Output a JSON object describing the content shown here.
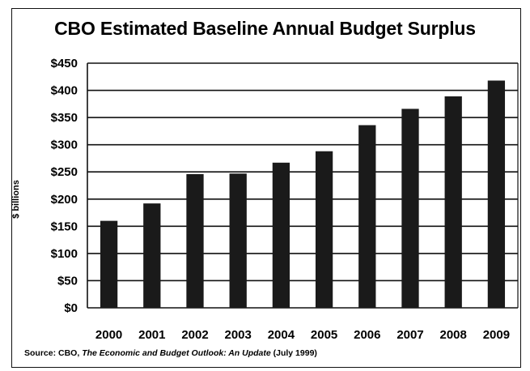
{
  "chart_data": {
    "type": "bar",
    "title": "CBO Estimated Baseline Annual Budget Surplus",
    "ylabel": "$ billions",
    "xlabel": "",
    "categories": [
      "2000",
      "2001",
      "2002",
      "2003",
      "2004",
      "2005",
      "2006",
      "2007",
      "2008",
      "2009"
    ],
    "values": [
      160,
      192,
      246,
      247,
      267,
      288,
      336,
      366,
      389,
      418
    ],
    "ylim": [
      0,
      450
    ],
    "yticks": [
      0,
      50,
      100,
      150,
      200,
      250,
      300,
      350,
      400,
      450
    ],
    "ytick_labels": [
      "$0",
      "$50",
      "$100",
      "$150",
      "$200",
      "$250",
      "$300",
      "$350",
      "$400",
      "$450"
    ],
    "grid": true,
    "legend": "none",
    "bar_color": "#1a1a1a"
  },
  "source": {
    "prefix": "Source: CBO, ",
    "title": "The Economic and Budget Outlook: An Update",
    "suffix": " (July 1999)"
  }
}
